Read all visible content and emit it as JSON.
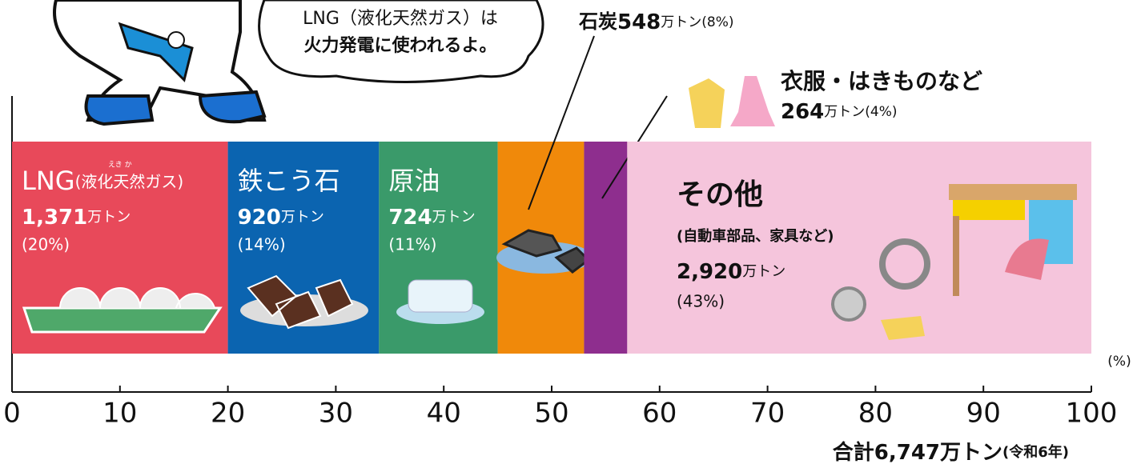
{
  "chart_data": {
    "type": "stacked-bar-100",
    "annotations": [
      "LNG（液化天然ガス）は",
      "火力発電に使われるよ。"
    ],
    "amount_unit": "万トン",
    "series": [
      {
        "name": "LNG",
        "note": "(液化天然ガス)",
        "ruby": "えき か",
        "color": "#e8495a",
        "values": [
          20
        ],
        "value_labels": [
          "(20%)"
        ],
        "amount_label": "1,371"
      },
      {
        "name": "鉄こう石",
        "color": "#0b64b0",
        "values": [
          14
        ],
        "value_labels": [
          "(14%)"
        ],
        "amount_label": "920"
      },
      {
        "name": "原油",
        "color": "#3a9a6a",
        "values": [
          11
        ],
        "value_labels": [
          "(11%)"
        ],
        "amount_label": "724"
      },
      {
        "name": "石炭",
        "color": "#f0890a",
        "values": [
          8
        ],
        "value_labels": [
          "(8%)"
        ],
        "amount_label": "548"
      },
      {
        "name": "衣服・はきものなど",
        "color": "#8e2e8e",
        "values": [
          4
        ],
        "value_labels": [
          "(4%)"
        ],
        "amount_label": "264"
      },
      {
        "name": "その他",
        "note": "(自動車部品、家具など)",
        "color": "#f5c5dc",
        "values": [
          43
        ],
        "value_labels": [
          "(43%)"
        ],
        "amount_label": "2,920"
      }
    ],
    "xlim": [
      0,
      100
    ],
    "xticks": [
      0,
      10,
      20,
      30,
      40,
      50,
      60,
      70,
      80,
      90,
      100
    ],
    "x_unit": "(%)",
    "total_label": "合計6,747万トン",
    "total_note": "(令和6年)"
  }
}
